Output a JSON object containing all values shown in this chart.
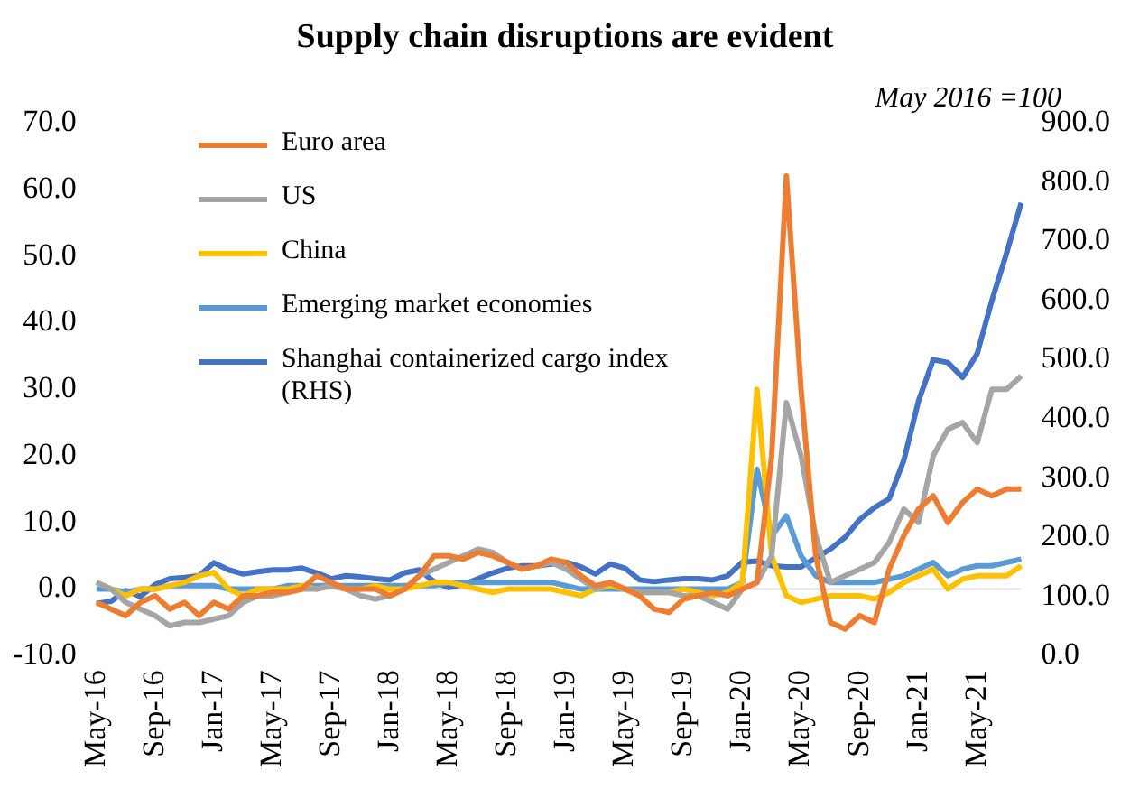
{
  "chart_data": {
    "type": "line",
    "title": "Supply chain disruptions are evident",
    "annotations": [
      "May 2016 =100"
    ],
    "categories": [
      "May-16",
      null,
      null,
      null,
      "Sep-16",
      null,
      null,
      null,
      "Jan-17",
      null,
      null,
      null,
      "May-17",
      null,
      null,
      null,
      "Sep-17",
      null,
      null,
      null,
      "Jan-18",
      null,
      null,
      null,
      "May-18",
      null,
      null,
      null,
      "Sep-18",
      null,
      null,
      null,
      "Jan-19",
      null,
      null,
      null,
      "May-19",
      null,
      null,
      null,
      "Sep-19",
      null,
      null,
      null,
      "Jan-20",
      null,
      null,
      null,
      "May-20",
      null,
      null,
      null,
      "Sep-20",
      null,
      null,
      null,
      "Jan-21",
      null,
      null,
      null,
      "May-21",
      null,
      null,
      null
    ],
    "ylim": [
      -10,
      70
    ],
    "yticks": [
      {
        "value": -10,
        "label": "-10.0"
      },
      {
        "value": 0,
        "label": "0.0"
      },
      {
        "value": 10,
        "label": "10.0"
      },
      {
        "value": 20,
        "label": "20.0"
      },
      {
        "value": 30,
        "label": "30.0"
      },
      {
        "value": 40,
        "label": "40.0"
      },
      {
        "value": 50,
        "label": "50.0"
      },
      {
        "value": 60,
        "label": "60.0"
      },
      {
        "value": 70,
        "label": "70.0"
      }
    ],
    "y2lim": [
      0,
      900
    ],
    "y2ticks": [
      {
        "value": 0,
        "label": "0.0"
      },
      {
        "value": 100,
        "label": "100.0"
      },
      {
        "value": 200,
        "label": "200.0"
      },
      {
        "value": 300,
        "label": "300.0"
      },
      {
        "value": 400,
        "label": "400.0"
      },
      {
        "value": 500,
        "label": "500.0"
      },
      {
        "value": 600,
        "label": "600.0"
      },
      {
        "value": 700,
        "label": "700.0"
      },
      {
        "value": 800,
        "label": "800.0"
      },
      {
        "value": 900,
        "label": "900.0"
      }
    ],
    "grid": false,
    "ref_lines": [
      {
        "axis": "y",
        "value": 0,
        "color": "#d9d9d9"
      }
    ],
    "legend": "top left",
    "marker": "none",
    "line_style": "solid",
    "series": [
      {
        "name": "Euro area",
        "color": "#ed7d31",
        "values": [
          -2,
          -3,
          -4,
          -2,
          -1,
          -3,
          -2,
          -4,
          -2,
          -3,
          -1,
          -1,
          -0.5,
          -0.5,
          0,
          2,
          1,
          0,
          0,
          0,
          -1,
          0,
          2,
          5,
          5,
          4.5,
          5.5,
          5,
          4,
          3,
          3.5,
          4.5,
          4,
          2,
          0.5,
          1,
          0,
          -1,
          -3,
          -3.5,
          -1.5,
          -1,
          -0.5,
          -1,
          0,
          1,
          20,
          62,
          30,
          5,
          -5,
          -6,
          -4,
          -5,
          3,
          8,
          12,
          14,
          10,
          13,
          15,
          14,
          15,
          15
        ]
      },
      {
        "name": "US",
        "color": "#a5a5a5",
        "values": [
          1,
          0,
          -2,
          -3,
          -4,
          -5.5,
          -5,
          -5,
          -4.5,
          -4,
          -2,
          -1,
          -1,
          -0.5,
          0,
          0,
          0.5,
          0,
          -1,
          -1.5,
          -1,
          0,
          2,
          3,
          4,
          5,
          6,
          5.5,
          4,
          3,
          3.5,
          4,
          3,
          1.5,
          0,
          1,
          0,
          -0.5,
          -0.5,
          -0.5,
          -1,
          -1,
          -2,
          -3,
          0,
          1,
          5,
          28,
          20,
          8,
          1,
          2,
          3,
          4,
          7,
          12,
          10,
          20,
          24,
          25,
          22,
          30,
          30,
          32
        ]
      },
      {
        "name": "China",
        "color": "#ffc000",
        "values": [
          1,
          0,
          -1,
          0,
          0,
          0.5,
          1,
          2,
          2.5,
          0,
          -1,
          0,
          0,
          0,
          0.5,
          0,
          0.5,
          0,
          0,
          0.5,
          0,
          0,
          0.5,
          1,
          1,
          0.5,
          0,
          -0.5,
          0,
          0,
          0,
          0,
          -0.5,
          -1,
          0,
          0.5,
          0,
          -0.5,
          -0.5,
          -0.5,
          0,
          -0.5,
          -1,
          -0.5,
          1,
          30,
          5,
          -1,
          -2,
          -1.5,
          -1,
          -1,
          -1,
          -1.5,
          -0.5,
          1,
          2,
          3,
          0,
          1.5,
          2,
          2,
          2,
          3.5
        ]
      },
      {
        "name": "Emerging market economies",
        "color": "#5b9bd5",
        "values": [
          0,
          0,
          -0.5,
          0,
          0,
          0.5,
          0.5,
          0.5,
          0.5,
          0,
          0,
          0,
          0,
          0.5,
          0.5,
          0.5,
          0.5,
          0.5,
          0.5,
          0.5,
          0.5,
          0.5,
          0.5,
          0.5,
          1,
          1,
          1,
          1,
          1,
          1,
          1,
          1,
          0.5,
          0,
          0,
          0,
          0,
          0,
          0,
          0,
          0,
          0,
          0,
          0,
          1,
          18,
          8,
          11,
          5,
          2,
          1,
          1,
          1,
          1,
          1.5,
          2,
          3,
          4,
          2,
          3,
          3.5,
          3.5,
          4,
          4.5
        ]
      },
      {
        "name": "Shanghai containerized cargo index (RHS)",
        "color": "#4472c4",
        "axis": "y2",
        "values": [
          88,
          92,
          110,
          100,
          120,
          130,
          132,
          135,
          157,
          145,
          138,
          142,
          145,
          145,
          148,
          140,
          130,
          135,
          133,
          130,
          128,
          140,
          145,
          125,
          115,
          120,
          130,
          140,
          148,
          152,
          152,
          155,
          158,
          150,
          138,
          155,
          148,
          128,
          125,
          128,
          130,
          130,
          128,
          135,
          158,
          160,
          152,
          150,
          150,
          165,
          180,
          200,
          230,
          250,
          265,
          330,
          430,
          500,
          495,
          470,
          510,
          600,
          680,
          765
        ]
      }
    ]
  }
}
